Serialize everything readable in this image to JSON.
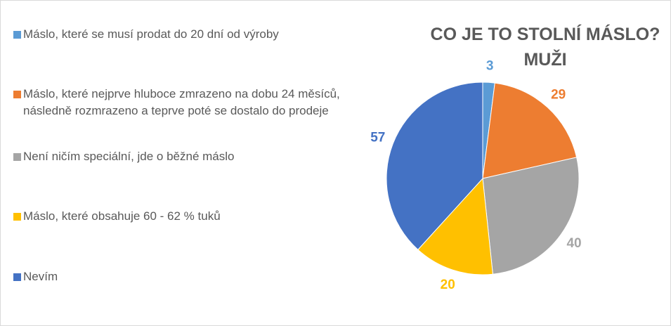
{
  "chart_data": {
    "type": "pie",
    "title": "CO JE TO STOLNÍ MÁSLO? MUŽI",
    "categories": [
      "Máslo, které se musí prodat do 20 dní od výroby",
      "Máslo, které nejprve hluboce zmrazeno na dobu 24 měsíců, následně rozmrazeno a teprve poté se dostalo do prodeje",
      "Není ničím speciální, jde o běžné máslo",
      "Máslo, které obsahuje 60 - 62 % tuků",
      "Nevím"
    ],
    "values": [
      3,
      29,
      40,
      20,
      57
    ],
    "colors": [
      "#5b9bd5",
      "#ed7d31",
      "#a5a5a5",
      "#ffc000",
      "#4472c4"
    ],
    "legend": "left"
  }
}
